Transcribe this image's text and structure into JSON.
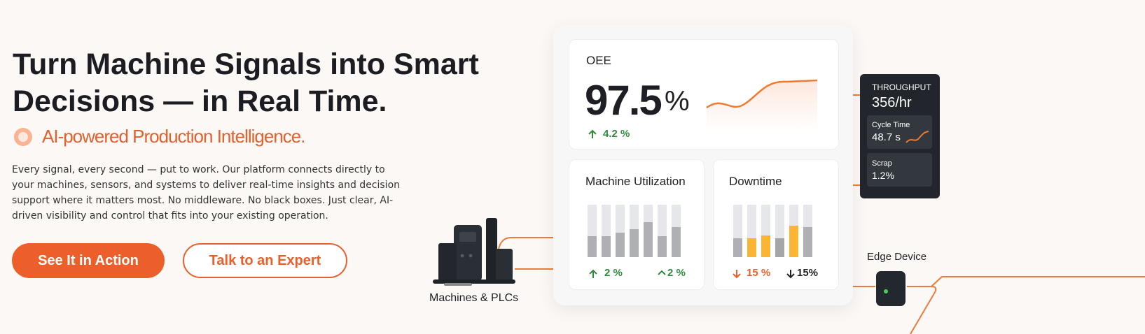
{
  "hero": {
    "title": "Turn Machine Signals into Smart Decisions — in Real Time.",
    "tagline": "AI-powered Production Intelligence.",
    "body": "Every signal, every second — put to work. Our platform connects directly to your machines, sensors, and systems to deliver real-time insights and decision support where it matters most. No middleware. No black boxes. Just clear, AI-driven visibility and control that fits into your existing operation.",
    "buttons": [
      "See It in Action",
      "Talk to an Expert"
    ]
  },
  "dashboard": {
    "oee": {
      "label": "OEE",
      "value": "97.5",
      "unit": "%",
      "change": "4.2 %"
    },
    "utilization": {
      "title": "Machine Utilization",
      "changes": [
        "2 %",
        "2 %"
      ]
    },
    "downtime": {
      "title": "Downtime",
      "changes": [
        "15 %",
        "15%"
      ]
    },
    "throughput": {
      "label": "THROUGHPUT",
      "value": "356/hr",
      "cycle_time": {
        "label": "Cycle Time",
        "value": "48.7 s"
      },
      "scrap": {
        "label": "Scrap",
        "value": "1.2%"
      }
    }
  },
  "machines_label": "Machines & PLCs",
  "edge_label": "Edge Device"
}
